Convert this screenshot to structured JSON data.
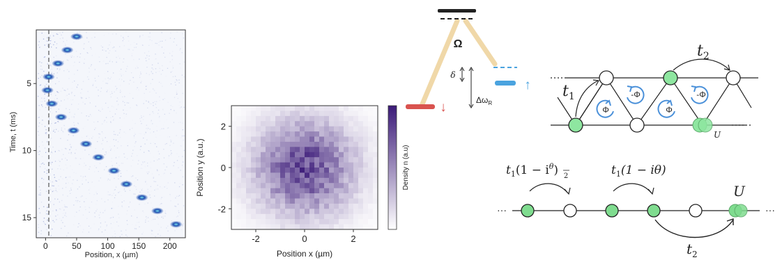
{
  "panel_a": {
    "ylabel": "Time, t (ms)",
    "xlabel": "Position, x (µm)",
    "xticks": [
      "0",
      "50",
      "100",
      "150",
      "200"
    ],
    "yticks": [
      "5",
      "10",
      "15"
    ],
    "xlim": [
      -15,
      225
    ],
    "ylim": [
      1,
      16.5
    ],
    "trajectory_t_ms": [
      1.5,
      2.5,
      3.5,
      4.5,
      5.5,
      6.5,
      7.5,
      8.5,
      9.5,
      10.5,
      11.5,
      12.5,
      13.5,
      14.5,
      15.5
    ],
    "trajectory_x_um": [
      50,
      35,
      20,
      5,
      3,
      10,
      25,
      45,
      65,
      85,
      110,
      130,
      155,
      180,
      210
    ],
    "marker_color": "#1f4fb0"
  },
  "panel_b": {
    "xlabel": "Position x (µm)",
    "ylabel": "Position y (a.u.)",
    "colorbar_label": "Density n (a.u)",
    "xticks": [
      "-2",
      "0",
      "2"
    ],
    "yticks": [
      "2",
      "0",
      "-2"
    ],
    "xlim": [
      -3,
      3
    ],
    "ylim": [
      -3,
      3
    ],
    "colormap": [
      "#ffffff",
      "#3b1a78"
    ]
  },
  "panel_c": {
    "omega": "Ω",
    "delta": "δ",
    "delta_omega": "Δω",
    "delta_omega_sub": "R",
    "arrow_down": "↓",
    "arrow_up": "↑",
    "down_color": "#d9534f",
    "up_color": "#4aa3df",
    "beam_color": "#f0d8a8"
  },
  "panel_d": {
    "t1": "t",
    "t1_sub": "1",
    "t2": "t",
    "t2_sub": "2",
    "phi_labels": [
      "Φ",
      "-Φ",
      "Φ",
      "-Φ"
    ],
    "U": "U",
    "filled_color": "#8ee6a0"
  },
  "panel_e": {
    "label1_prefix": "t",
    "label1_sub": "1",
    "label1_expr": "(1 − i",
    "label1_frac_num": "θ",
    "label1_frac_den": "2",
    "label1_close": ")",
    "label2_prefix": "t",
    "label2_sub": "1",
    "label2_expr": "(1 − iθ)",
    "t2": "t",
    "t2_sub": "2",
    "U": "U",
    "dots": "···",
    "filled_color": "#7fdc8f"
  }
}
